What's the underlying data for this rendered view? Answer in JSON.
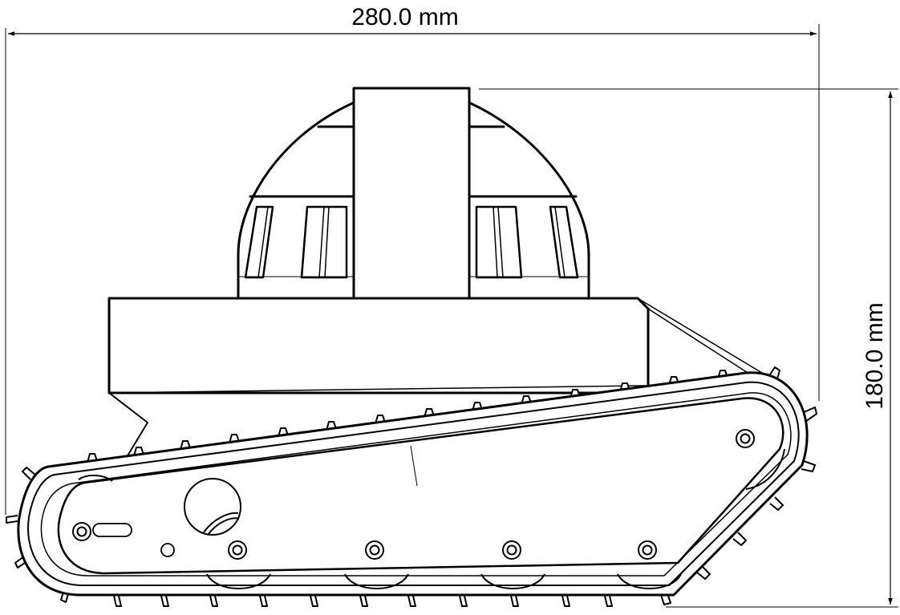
{
  "drawing": {
    "width_label": "280.0 mm",
    "height_label": "180.0 mm"
  }
}
